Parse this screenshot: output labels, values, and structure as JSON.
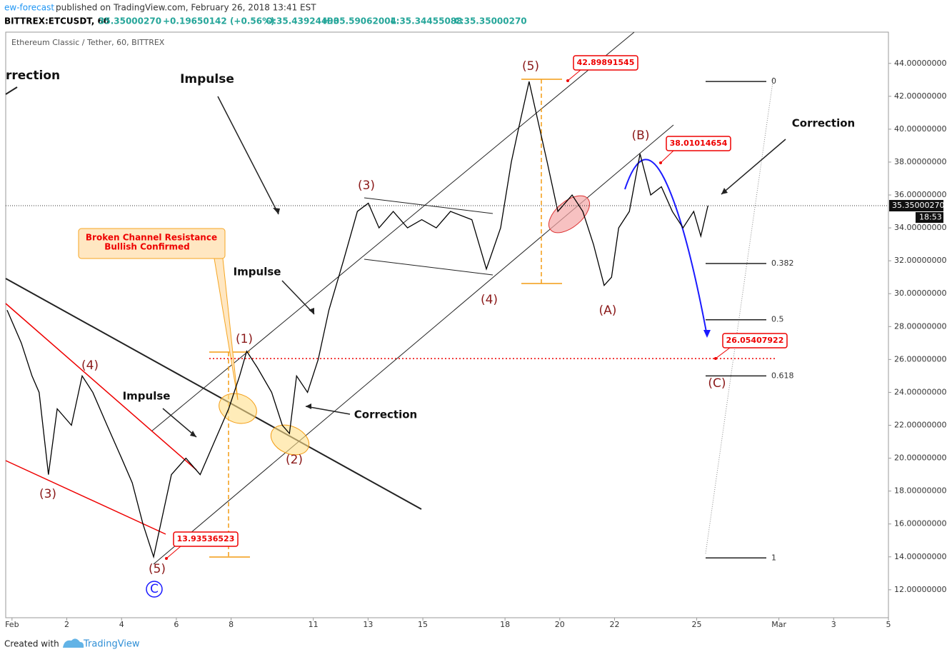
{
  "header": {
    "author": "ew-forecast",
    "published": "published on TradingView.com, February 26, 2018 13:41 EST",
    "symbol": "BITTREX:ETCUSDT, 60",
    "price": "35.35000270",
    "change": "+0.19650142 (+0.56%)",
    "open": "O:35.43924490",
    "high": "H:35.59062004",
    "low": "L:35.34455088",
    "close": "C:35.35000270"
  },
  "footer": {
    "created": "Created with",
    "brand": "TradingView"
  },
  "chart_data": {
    "type": "line",
    "subtitle": "Ethereum Classic / Tether, 60, BITTREX",
    "color": "#000000",
    "x": [
      -0.18,
      0.34,
      0.73,
      0.99,
      1.33,
      1.65,
      2.17,
      2.56,
      2.95,
      3.47,
      4.0,
      4.39,
      4.78,
      5.17,
      5.43,
      5.82,
      6.35,
      6.87,
      7.39,
      7.91,
      8.31,
      8.57,
      8.96,
      9.48,
      9.87,
      10.13,
      10.39,
      10.79,
      11.18,
      11.57,
      12.1,
      12.61,
      13.01,
      13.4,
      13.92,
      14.44,
      14.96,
      15.49,
      16.01,
      16.79,
      17.32,
      17.84,
      18.23,
      18.49,
      18.88,
      19.27,
      19.54,
      19.93,
      20.45,
      20.84,
      21.23,
      21.62,
      21.89,
      22.15,
      22.54,
      22.93,
      23.32,
      23.71,
      24.11,
      24.5,
      24.89,
      25.15,
      25.41
    ],
    "values": [
      29,
      27,
      25,
      24,
      19,
      23,
      22,
      25,
      24,
      22,
      20,
      18.5,
      16,
      14,
      16,
      19,
      20,
      19,
      21,
      23,
      25,
      26.5,
      25.5,
      24,
      22,
      21.5,
      25,
      24,
      26,
      29,
      32,
      35,
      35.5,
      34,
      35,
      34,
      34.5,
      34,
      35,
      34.5,
      31.5,
      34,
      38,
      40,
      42.9,
      40,
      38,
      35,
      36,
      35,
      33,
      30.5,
      31,
      34,
      35,
      38.5,
      36,
      36.5,
      35,
      34,
      35,
      33.5,
      35.35
    ],
    "xlim": [
      -0.23,
      32.0
    ],
    "xticks": [
      {
        "value": 0,
        "label": "Feb"
      },
      2,
      4,
      6,
      8,
      11,
      13,
      15,
      18,
      20,
      22,
      25,
      {
        "value": 28,
        "label": "Mar"
      },
      {
        "value": 30,
        "label": "3"
      },
      {
        "value": 32,
        "label": "5"
      }
    ],
    "ylim": [
      10.3,
      45.9
    ],
    "yticks": [
      {
        "value": 12,
        "label": "12.00000000"
      },
      {
        "value": 14,
        "label": "14.00000000"
      },
      {
        "value": 16,
        "label": "16.00000000"
      },
      {
        "value": 18,
        "label": "18.00000000"
      },
      {
        "value": 20,
        "label": "20.00000000"
      },
      {
        "value": 22,
        "label": "22.00000000"
      },
      {
        "value": 24,
        "label": "24.00000000"
      },
      {
        "value": 26,
        "label": "26.00000000"
      },
      {
        "value": 28,
        "label": "28.00000000"
      },
      {
        "value": 30,
        "label": "30.00000000"
      },
      {
        "value": 32,
        "label": "32.00000000"
      },
      {
        "value": 34,
        "label": "34.00000000"
      },
      {
        "value": 36,
        "label": "36.00000000"
      },
      {
        "value": 38,
        "label": "38.00000000"
      },
      {
        "value": 40,
        "label": "40.00000000"
      },
      {
        "value": 42,
        "label": "42.00000000"
      },
      {
        "value": 44,
        "label": "44.00000000"
      }
    ],
    "last_price_label": "35.35000270",
    "countdown": "18:53",
    "price_labels": [
      42.89891545,
      38.01014654,
      26.05407922,
      13.93536523
    ],
    "fib_levels": [
      0,
      0.382,
      0.5,
      0.618,
      1
    ],
    "box_text": [
      "Broken Channel Resistance",
      "Bullish Confirmed"
    ],
    "waves": [
      "(5)",
      "(3)",
      "(4)",
      "(1)",
      "(2)",
      "(A)",
      "(B)",
      "(C)",
      "(4)",
      "(3)",
      "(5)",
      "C"
    ],
    "annotations": [
      "rrection",
      "Impulse",
      "Impulse",
      "Impulse",
      "Correction",
      "Correction"
    ]
  }
}
